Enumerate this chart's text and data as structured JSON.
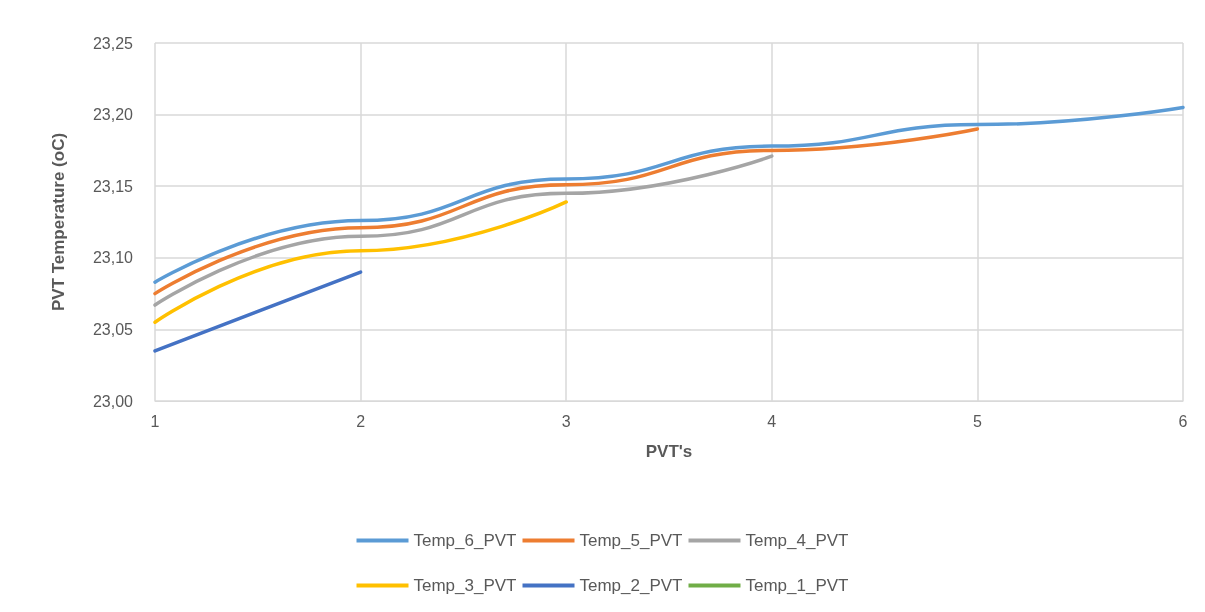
{
  "chart_data": {
    "type": "line",
    "xlabel": "PVT's",
    "ylabel": "PVT Temperature (oC)",
    "x": [
      1,
      2,
      3,
      4,
      5,
      6
    ],
    "series": [
      {
        "name": "Temp_6_PVT",
        "color": "#5b9bd5",
        "values": [
          23.083,
          23.126,
          23.155,
          23.178,
          23.193,
          23.205
        ]
      },
      {
        "name": "Temp_5_PVT",
        "color": "#ed7d31",
        "values": [
          23.075,
          23.121,
          23.151,
          23.175,
          23.19,
          null
        ]
      },
      {
        "name": "Temp_4_PVT",
        "color": "#a5a5a5",
        "values": [
          23.067,
          23.115,
          23.145,
          23.171,
          null,
          null
        ]
      },
      {
        "name": "Temp_3_PVT",
        "color": "#ffc000",
        "values": [
          23.055,
          23.105,
          23.139,
          null,
          null,
          null
        ]
      },
      {
        "name": "Temp_2_PVT",
        "color": "#4472c4",
        "values": [
          23.035,
          23.09,
          null,
          null,
          null,
          null
        ]
      },
      {
        "name": "Temp_1_PVT",
        "color": "#70ad47",
        "values": [
          null,
          null,
          null,
          null,
          null,
          null
        ]
      }
    ],
    "xlim": [
      1,
      6
    ],
    "xticks": [
      1,
      2,
      3,
      4,
      5,
      6
    ],
    "ylim": [
      23.0,
      23.25
    ],
    "yticks": [
      {
        "value": 23.0,
        "label": "23,00"
      },
      {
        "value": 23.05,
        "label": "23,05"
      },
      {
        "value": 23.1,
        "label": "23,10"
      },
      {
        "value": 23.15,
        "label": "23,15"
      },
      {
        "value": 23.2,
        "label": "23,20"
      },
      {
        "value": 23.25,
        "label": "23,25"
      }
    ],
    "grid": true,
    "legend": "bottom",
    "marker": "none",
    "line_style": "solid"
  }
}
